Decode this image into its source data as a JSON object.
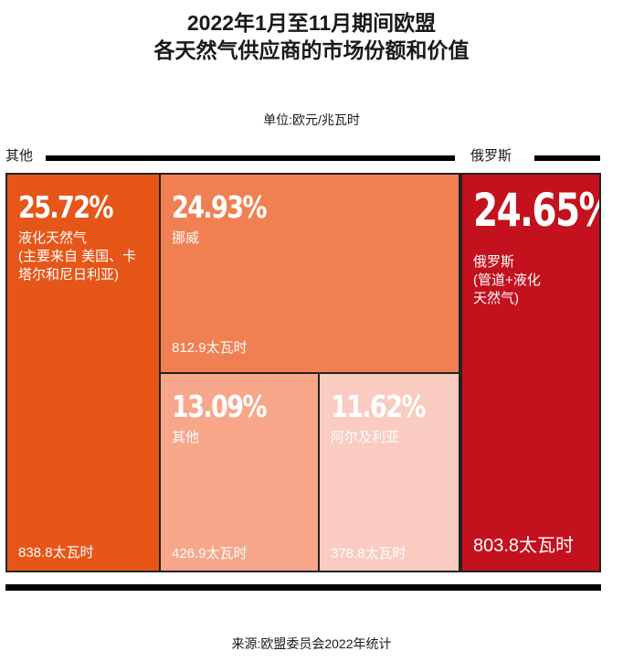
{
  "title_line1": "2022年1月至11月期间欧盟",
  "title_line2": "各天然气供应商的市场份额和价值",
  "unit": "单位:欧元/兆瓦时",
  "left_header": "其他",
  "right_header": "俄罗斯",
  "source": "来源:欧盟委员会2022年统计",
  "colors": {
    "lng": "#e55618",
    "norway": "#f08052",
    "other": "#f7a68a",
    "algeria": "#facbc0",
    "russia": "#c3111e"
  },
  "chart_data": {
    "type": "treemap",
    "title": "2022年1月至11月期间欧盟 各天然气供应商的市场份额和价值",
    "unit": "单位:欧元/兆瓦时",
    "groups": [
      "其他",
      "俄罗斯"
    ],
    "items": [
      {
        "group": "其他",
        "share_label": "25.72%",
        "share": 25.72,
        "name": "液化天然气\n(主要来自 美国、卡\n塔尔和尼日利亚)",
        "value_label": "838.8太瓦时",
        "value": 838.8
      },
      {
        "group": "其他",
        "share_label": "24.93%",
        "share": 24.93,
        "name": "挪威",
        "value_label": "812.9太瓦时",
        "value": 812.9
      },
      {
        "group": "其他",
        "share_label": "13.09%",
        "share": 13.09,
        "name": "其他",
        "value_label": "426.9太瓦时",
        "value": 426.9
      },
      {
        "group": "其他",
        "share_label": "11.62%",
        "share": 11.62,
        "name": "阿尔及利亚",
        "value_label": "378.8太瓦时",
        "value": 378.8
      },
      {
        "group": "俄罗斯",
        "share_label": "24.65%",
        "share": 24.65,
        "name": "俄罗斯\n(管道+液化\n天然气)",
        "value_label": "803.8太瓦时",
        "value": 803.8
      }
    ]
  }
}
